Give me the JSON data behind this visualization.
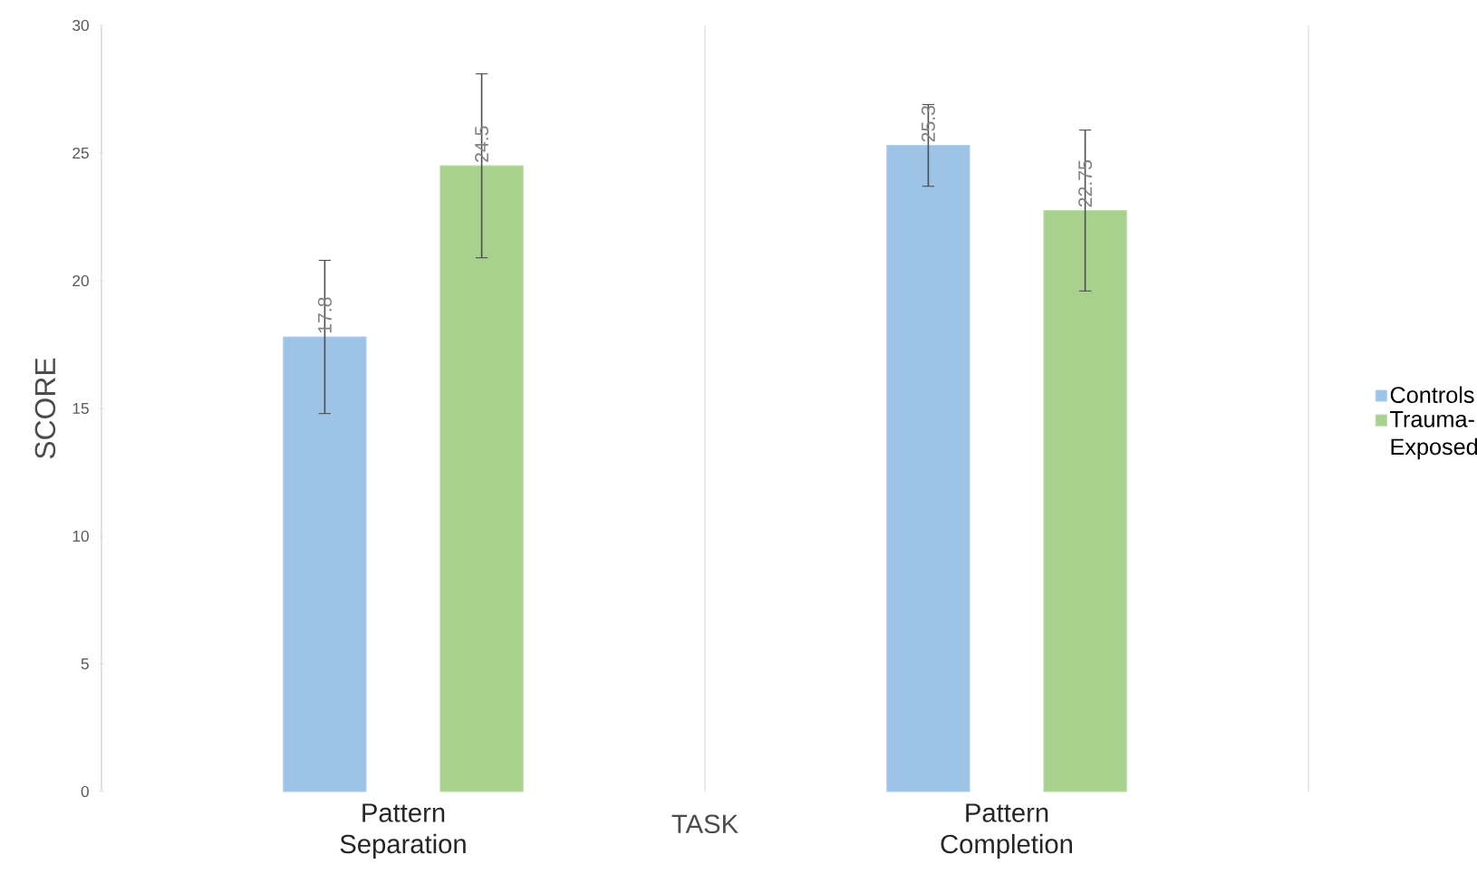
{
  "chart_data": {
    "type": "bar",
    "xlabel": "TASK",
    "ylabel": "SCORE",
    "categories": [
      "Pattern Separation",
      "Pattern Completion"
    ],
    "series": [
      {
        "name": "Controls",
        "color": "#9dc3e6",
        "values": [
          17.8,
          25.3
        ],
        "errors": [
          3,
          1.6
        ],
        "value_labels": [
          "17.8",
          "25.3"
        ]
      },
      {
        "name": "Trauma-Exposed",
        "color": "#a9d18e",
        "values": [
          24.5,
          22.75
        ],
        "errors": [
          3.6,
          3.15
        ],
        "value_labels": [
          "24.5",
          "22.75"
        ]
      }
    ],
    "ylim": [
      0,
      30
    ],
    "yticks": [
      0,
      5,
      10,
      15,
      20,
      25,
      30
    ],
    "grid": "x",
    "legend": "right"
  }
}
